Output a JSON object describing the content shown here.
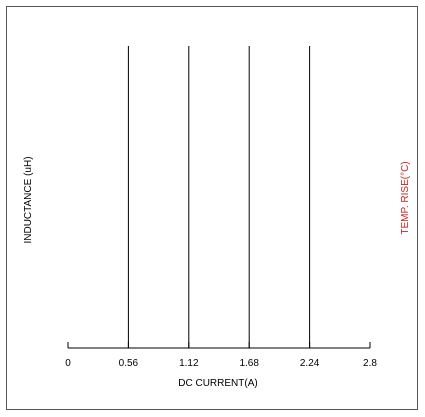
{
  "chart_data": {
    "type": "line",
    "xlabel": "DC CURRENT(A)",
    "ylabel": "INDUCTANCE (uH)",
    "ylabel_right": "TEMP. RISE(°C)",
    "xlim": [
      0,
      2.8
    ],
    "x_ticks": [
      0,
      0.56,
      1.12,
      1.68,
      2.24,
      2.8
    ],
    "x_tick_labels": [
      "0",
      "0.56",
      "1.12",
      "1.68",
      "2.24",
      "2.8"
    ],
    "vertical_lines_x": [
      0.56,
      1.12,
      1.68,
      2.24
    ],
    "grid": false,
    "colors": {
      "axis": "#000000",
      "left_label": "#000000",
      "right_label": "#cc2222",
      "frame": "#555555"
    }
  }
}
